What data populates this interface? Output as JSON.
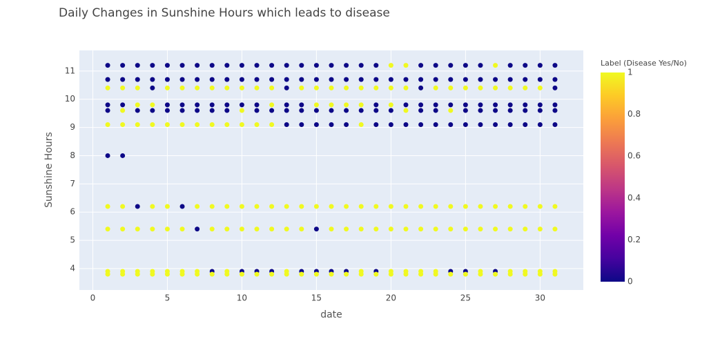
{
  "chart_data": {
    "type": "scatter",
    "title": "Daily Changes in Sunshine Hours which leads to disease",
    "x_label": "date",
    "y_label": "Sunshine Hours",
    "colorbar_title": "Label (Disease Yes/No)",
    "xlim": [
      -0.9,
      32.9
    ],
    "xticks": [
      0,
      5,
      10,
      15,
      20,
      25,
      30
    ],
    "ylim": [
      3.24,
      11.73
    ],
    "yticks": [
      4,
      5,
      6,
      7,
      8,
      9,
      10,
      11
    ],
    "clim": [
      0,
      1
    ],
    "cticks": [
      0,
      0.2,
      0.4,
      0.6,
      0.8,
      1
    ],
    "colorscale": [
      "#0d0887",
      "#46039f",
      "#7201a8",
      "#9c179e",
      "#bd3786",
      "#d8576b",
      "#ed7953",
      "#fb9f3a",
      "#fdca26",
      "#f0f921"
    ],
    "background": "#e5ecf6",
    "grid": true,
    "x": [
      1,
      2,
      3,
      4,
      5,
      6,
      7,
      8,
      9,
      10,
      11,
      12,
      13,
      14,
      15,
      16,
      17,
      18,
      19,
      20,
      21,
      22,
      23,
      24,
      25,
      26,
      27,
      28,
      29,
      30,
      31,
      1,
      2,
      3,
      4,
      5,
      6,
      7,
      8,
      9,
      10,
      11,
      12,
      13,
      14,
      15,
      16,
      17,
      18,
      19,
      20,
      21,
      22,
      23,
      24,
      25,
      26,
      27,
      28,
      29,
      30,
      31,
      1,
      2,
      3,
      4,
      5,
      6,
      7,
      8,
      9,
      10,
      11,
      12,
      13,
      14,
      15,
      16,
      17,
      18,
      19,
      20,
      21,
      22,
      23,
      24,
      25,
      26,
      27,
      28,
      29,
      30,
      31,
      1,
      2,
      3,
      4,
      5,
      6,
      7,
      8,
      9,
      10,
      11,
      12,
      13,
      14,
      15,
      16,
      17,
      18,
      19,
      20,
      21,
      22,
      23,
      24,
      25,
      26,
      27,
      28,
      29,
      30,
      31,
      1,
      2,
      3,
      4,
      5,
      6,
      7,
      8,
      9,
      10,
      11,
      12,
      13,
      14,
      15,
      16,
      17,
      18,
      19,
      20,
      21,
      22,
      23,
      24,
      25,
      26,
      27,
      28,
      29,
      30,
      31,
      1,
      2,
      3,
      4,
      5,
      6,
      7,
      8,
      9,
      10,
      11,
      12,
      13,
      14,
      15,
      16,
      17,
      18,
      19,
      20,
      21,
      22,
      23,
      24,
      25,
      26,
      27,
      28,
      29,
      30,
      31,
      1,
      2,
      1,
      2,
      3,
      4,
      5,
      6,
      7,
      8,
      9,
      10,
      11,
      12,
      13,
      14,
      15,
      16,
      17,
      18,
      19,
      20,
      21,
      22,
      23,
      24,
      25,
      26,
      27,
      28,
      29,
      30,
      31,
      1,
      2,
      3,
      4,
      5,
      6,
      7,
      8,
      9,
      10,
      11,
      12,
      13,
      14,
      15,
      16,
      17,
      18,
      19,
      20,
      21,
      22,
      23,
      24,
      25,
      26,
      27,
      28,
      29,
      30,
      31,
      1,
      2,
      3,
      4,
      5,
      6,
      7,
      8,
      9,
      10,
      11,
      12,
      13,
      14,
      15,
      16,
      17,
      18,
      19,
      20,
      21,
      22,
      23,
      24,
      25,
      26,
      27,
      28,
      29,
      30,
      31,
      1,
      2,
      3,
      4,
      5,
      6,
      7,
      8,
      9,
      10,
      11,
      12,
      13,
      14,
      15,
      16,
      17,
      18,
      19,
      20,
      21,
      22,
      23,
      24,
      25,
      26,
      27,
      28,
      29,
      30,
      31
    ],
    "y": [
      11.2,
      11.2,
      11.2,
      11.2,
      11.2,
      11.2,
      11.2,
      11.2,
      11.2,
      11.2,
      11.2,
      11.2,
      11.2,
      11.2,
      11.2,
      11.2,
      11.2,
      11.2,
      11.2,
      11.2,
      11.2,
      11.2,
      11.2,
      11.2,
      11.2,
      11.2,
      11.2,
      11.2,
      11.2,
      11.2,
      11.2,
      10.7,
      10.7,
      10.7,
      10.7,
      10.7,
      10.7,
      10.7,
      10.7,
      10.7,
      10.7,
      10.7,
      10.7,
      10.7,
      10.7,
      10.7,
      10.7,
      10.7,
      10.7,
      10.7,
      10.7,
      10.7,
      10.7,
      10.7,
      10.7,
      10.7,
      10.7,
      10.7,
      10.7,
      10.7,
      10.7,
      10.7,
      10.4,
      10.4,
      10.4,
      10.4,
      10.4,
      10.4,
      10.4,
      10.4,
      10.4,
      10.4,
      10.4,
      10.4,
      10.4,
      10.4,
      10.4,
      10.4,
      10.4,
      10.4,
      10.4,
      10.4,
      10.4,
      10.4,
      10.4,
      10.4,
      10.4,
      10.4,
      10.4,
      10.4,
      10.4,
      10.4,
      10.4,
      9.8,
      9.8,
      9.8,
      9.8,
      9.8,
      9.8,
      9.8,
      9.8,
      9.8,
      9.8,
      9.8,
      9.8,
      9.8,
      9.8,
      9.8,
      9.8,
      9.8,
      9.8,
      9.8,
      9.8,
      9.8,
      9.8,
      9.8,
      9.8,
      9.8,
      9.8,
      9.8,
      9.8,
      9.8,
      9.8,
      9.8,
      9.6,
      9.6,
      9.6,
      9.6,
      9.6,
      9.6,
      9.6,
      9.6,
      9.6,
      9.6,
      9.6,
      9.6,
      9.6,
      9.6,
      9.6,
      9.6,
      9.6,
      9.6,
      9.6,
      9.6,
      9.6,
      9.6,
      9.6,
      9.6,
      9.6,
      9.6,
      9.6,
      9.6,
      9.6,
      9.6,
      9.6,
      9.1,
      9.1,
      9.1,
      9.1,
      9.1,
      9.1,
      9.1,
      9.1,
      9.1,
      9.1,
      9.1,
      9.1,
      9.1,
      9.1,
      9.1,
      9.1,
      9.1,
      9.1,
      9.1,
      9.1,
      9.1,
      9.1,
      9.1,
      9.1,
      9.1,
      9.1,
      9.1,
      9.1,
      9.1,
      9.1,
      9.1,
      8.0,
      8.0,
      6.2,
      6.2,
      6.2,
      6.2,
      6.2,
      6.2,
      6.2,
      6.2,
      6.2,
      6.2,
      6.2,
      6.2,
      6.2,
      6.2,
      6.2,
      6.2,
      6.2,
      6.2,
      6.2,
      6.2,
      6.2,
      6.2,
      6.2,
      6.2,
      6.2,
      6.2,
      6.2,
      6.2,
      6.2,
      6.2,
      6.2,
      5.4,
      5.4,
      5.4,
      5.4,
      5.4,
      5.4,
      5.4,
      5.4,
      5.4,
      5.4,
      5.4,
      5.4,
      5.4,
      5.4,
      5.4,
      5.4,
      5.4,
      5.4,
      5.4,
      5.4,
      5.4,
      5.4,
      5.4,
      5.4,
      5.4,
      5.4,
      5.4,
      5.4,
      5.4,
      5.4,
      5.4,
      3.9,
      3.9,
      3.9,
      3.9,
      3.9,
      3.9,
      3.9,
      3.9,
      3.9,
      3.9,
      3.9,
      3.9,
      3.9,
      3.9,
      3.9,
      3.9,
      3.9,
      3.9,
      3.9,
      3.9,
      3.9,
      3.9,
      3.9,
      3.9,
      3.9,
      3.9,
      3.9,
      3.9,
      3.9,
      3.9,
      3.9,
      3.8,
      3.8,
      3.8,
      3.8,
      3.8,
      3.8,
      3.8,
      3.8,
      3.8,
      3.8,
      3.8,
      3.8,
      3.8,
      3.8,
      3.8,
      3.8,
      3.8,
      3.8,
      3.8,
      3.8,
      3.8,
      3.8,
      3.8,
      3.8,
      3.8,
      3.8,
      3.8,
      3.8,
      3.8,
      3.8,
      3.8
    ],
    "color_values": [
      0,
      0,
      0,
      0,
      0,
      0,
      0,
      0,
      0,
      0,
      0,
      0,
      0,
      0,
      0,
      0,
      0,
      0,
      0,
      1,
      1,
      0,
      0,
      0,
      0,
      0,
      1,
      0,
      0,
      0,
      0,
      0,
      0,
      0,
      0,
      0,
      0,
      0,
      0,
      0,
      0,
      0,
      0,
      0,
      0,
      0,
      0,
      0,
      0,
      0,
      0,
      0,
      0,
      0,
      0,
      0,
      0,
      0,
      0,
      0,
      0,
      0,
      1,
      1,
      1,
      0,
      1,
      1,
      1,
      1,
      1,
      1,
      1,
      1,
      0,
      1,
      1,
      1,
      1,
      1,
      1,
      1,
      1,
      0,
      1,
      1,
      1,
      1,
      1,
      1,
      1,
      1,
      0,
      0,
      0,
      1,
      1,
      0,
      0,
      0,
      0,
      0,
      0,
      0,
      1,
      0,
      0,
      1,
      1,
      1,
      1,
      0,
      1,
      0,
      0,
      0,
      0,
      0,
      0,
      0,
      0,
      0,
      0,
      0,
      0,
      1,
      0,
      0,
      0,
      0,
      0,
      0,
      0,
      1,
      0,
      0,
      0,
      0,
      0,
      0,
      0,
      0,
      0,
      0,
      1,
      0,
      0,
      1,
      0,
      0,
      0,
      0,
      0,
      0,
      0,
      1,
      1,
      1,
      1,
      1,
      1,
      1,
      1,
      1,
      1,
      1,
      1,
      0,
      0,
      0,
      0,
      0,
      1,
      0,
      0,
      0,
      0,
      0,
      0,
      0,
      0,
      0,
      0,
      0,
      0,
      0,
      0,
      0,
      1,
      1,
      0,
      1,
      1,
      0,
      1,
      1,
      1,
      1,
      1,
      1,
      1,
      1,
      1,
      1,
      1,
      1,
      1,
      1,
      1,
      1,
      1,
      1,
      1,
      1,
      1,
      1,
      1,
      1,
      1,
      1,
      1,
      1,
      1,
      1,
      1,
      0,
      1,
      1,
      1,
      1,
      1,
      1,
      1,
      0,
      1,
      1,
      1,
      1,
      1,
      1,
      1,
      1,
      1,
      1,
      1,
      1,
      1,
      1,
      1,
      1,
      1,
      1,
      1,
      1,
      1,
      1,
      1,
      0,
      1,
      0,
      0,
      0,
      1,
      0,
      0,
      0,
      0,
      1,
      0,
      1,
      1,
      1,
      1,
      0,
      0,
      1,
      0,
      1,
      1,
      1,
      1,
      1,
      1,
      1,
      1,
      1,
      1,
      1,
      1,
      1,
      1,
      1,
      1,
      1,
      1,
      1,
      1,
      1,
      1,
      1,
      1,
      1,
      1,
      1,
      1,
      1,
      1,
      1,
      1,
      1,
      1,
      1
    ]
  }
}
